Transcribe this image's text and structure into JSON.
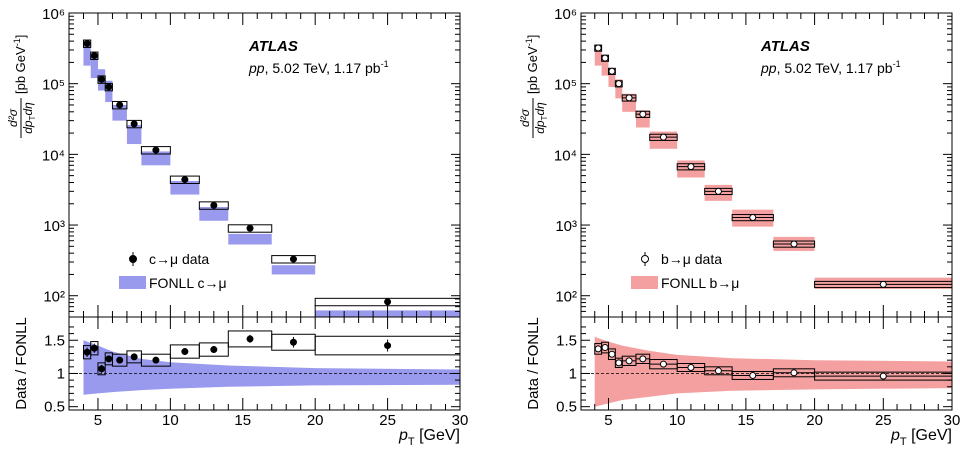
{
  "chart_data": [
    {
      "type": "scatter",
      "atlas_label": "ATLAS",
      "run_label": {
        "italic": "pp",
        "rest": ", 5.02 TeV, 1.17 pb",
        "sup": "-1"
      },
      "ylabel_main": {
        "frac_num": "d²σ",
        "frac_den": "dp",
        "den_sub": "T",
        "den_tail": "dη",
        "unit": "[pb GeV",
        "unit_sup": "-1",
        "unit_close": "]"
      },
      "ylabel_ratio": "Data / FONLL",
      "xlabel": {
        "p": "p",
        "sub": "T",
        "unit": "[GeV]"
      },
      "xlim": [
        3,
        30
      ],
      "ylim_main": [
        50,
        1000000
      ],
      "ylim_ratio": [
        0.45,
        1.85
      ],
      "y_log": true,
      "yticks_main": [
        "10²",
        "10³",
        "10⁴",
        "10⁵",
        "10⁶"
      ],
      "yticks_ratio": [
        "0.5",
        "1",
        "1.5"
      ],
      "xticks": [
        "5",
        "10",
        "15",
        "20",
        "25",
        "30"
      ],
      "legend": {
        "data": "c→μ data",
        "theory": "FONLL c→μ"
      },
      "legend_placement": "lower-left",
      "theory_color": "#9999ee",
      "data_marker": "filled-circle",
      "bins": [
        {
          "xlo": 4,
          "xhi": 4.5,
          "x": 4.25,
          "y": 370000,
          "syst": 0.12,
          "stat": 0.02,
          "th_lo": 180000,
          "th_hi": 360000
        },
        {
          "xlo": 4.5,
          "xhi": 5,
          "x": 4.75,
          "y": 250000,
          "syst": 0.12,
          "stat": 0.02,
          "th_lo": 120000,
          "th_hi": 240000
        },
        {
          "xlo": 5,
          "xhi": 5.5,
          "x": 5.25,
          "y": 115000,
          "syst": 0.12,
          "stat": 0.02,
          "th_lo": 80000,
          "th_hi": 160000
        },
        {
          "xlo": 5.5,
          "xhi": 6,
          "x": 5.75,
          "y": 90000,
          "syst": 0.12,
          "stat": 0.02,
          "th_lo": 55000,
          "th_hi": 110000
        },
        {
          "xlo": 6,
          "xhi": 7,
          "x": 6.5,
          "y": 50000,
          "syst": 0.12,
          "stat": 0.02,
          "th_lo": 30000,
          "th_hi": 50000
        },
        {
          "xlo": 7,
          "xhi": 8,
          "x": 7.5,
          "y": 27000,
          "syst": 0.12,
          "stat": 0.02,
          "th_lo": 14000,
          "th_hi": 26000
        },
        {
          "xlo": 8,
          "xhi": 10,
          "x": 9,
          "y": 11500,
          "syst": 0.12,
          "stat": 0.02,
          "th_lo": 7000,
          "th_hi": 11000
        },
        {
          "xlo": 10,
          "xhi": 12,
          "x": 11,
          "y": 4400,
          "syst": 0.12,
          "stat": 0.02,
          "th_lo": 2700,
          "th_hi": 4200
        },
        {
          "xlo": 12,
          "xhi": 14,
          "x": 13,
          "y": 1900,
          "syst": 0.12,
          "stat": 0.02,
          "th_lo": 1150,
          "th_hi": 1800
        },
        {
          "xlo": 14,
          "xhi": 17,
          "x": 15.5,
          "y": 900,
          "syst": 0.12,
          "stat": 0.02,
          "th_lo": 530,
          "th_hi": 750
        },
        {
          "xlo": 17,
          "xhi": 20,
          "x": 18.5,
          "y": 330,
          "syst": 0.12,
          "stat": 0.02,
          "th_lo": 200,
          "th_hi": 270
        },
        {
          "xlo": 20,
          "xhi": 30,
          "x": 25,
          "y": 82,
          "syst": 0.12,
          "stat": 0.04,
          "th_lo": 50,
          "th_hi": 62
        }
      ],
      "ratio": [
        {
          "xlo": 4,
          "xhi": 4.5,
          "x": 4.25,
          "y": 1.32,
          "syst": 0.1,
          "stat": 0.07
        },
        {
          "xlo": 4.5,
          "xhi": 5,
          "x": 4.75,
          "y": 1.38,
          "syst": 0.1,
          "stat": 0.07
        },
        {
          "xlo": 5,
          "xhi": 5.5,
          "x": 5.25,
          "y": 1.07,
          "syst": 0.09,
          "stat": 0.06
        },
        {
          "xlo": 5.5,
          "xhi": 6,
          "x": 5.75,
          "y": 1.22,
          "syst": 0.09,
          "stat": 0.05
        },
        {
          "xlo": 6,
          "xhi": 7,
          "x": 6.5,
          "y": 1.2,
          "syst": 0.09,
          "stat": 0.04
        },
        {
          "xlo": 7,
          "xhi": 8,
          "x": 7.5,
          "y": 1.25,
          "syst": 0.09,
          "stat": 0.04
        },
        {
          "xlo": 8,
          "xhi": 10,
          "x": 9,
          "y": 1.2,
          "syst": 0.09,
          "stat": 0.03
        },
        {
          "xlo": 10,
          "xhi": 12,
          "x": 11,
          "y": 1.33,
          "syst": 0.1,
          "stat": 0.05
        },
        {
          "xlo": 12,
          "xhi": 14,
          "x": 13,
          "y": 1.36,
          "syst": 0.1,
          "stat": 0.05
        },
        {
          "xlo": 14,
          "xhi": 17,
          "x": 15.5,
          "y": 1.52,
          "syst": 0.12,
          "stat": 0.06
        },
        {
          "xlo": 17,
          "xhi": 20,
          "x": 18.5,
          "y": 1.47,
          "syst": 0.12,
          "stat": 0.08
        },
        {
          "xlo": 20,
          "xhi": 30,
          "x": 25,
          "y": 1.42,
          "syst": 0.14,
          "stat": 0.09
        }
      ],
      "ratio_band": [
        {
          "x": 4,
          "lo": 0.68,
          "hi": 1.5
        },
        {
          "x": 5,
          "lo": 0.7,
          "hi": 1.42
        },
        {
          "x": 6,
          "lo": 0.72,
          "hi": 1.33
        },
        {
          "x": 8,
          "lo": 0.75,
          "hi": 1.22
        },
        {
          "x": 10,
          "lo": 0.77,
          "hi": 1.17
        },
        {
          "x": 14,
          "lo": 0.8,
          "hi": 1.12
        },
        {
          "x": 20,
          "lo": 0.82,
          "hi": 1.08
        },
        {
          "x": 30,
          "lo": 0.83,
          "hi": 1.06
        }
      ]
    },
    {
      "type": "scatter",
      "atlas_label": "ATLAS",
      "run_label": {
        "italic": "pp",
        "rest": ", 5.02 TeV, 1.17 pb",
        "sup": "-1"
      },
      "ylabel_main": {
        "frac_num": "d²σ",
        "frac_den": "dp",
        "den_sub": "T",
        "den_tail": "dη",
        "unit": "[pb GeV",
        "unit_sup": "-1",
        "unit_close": "]"
      },
      "ylabel_ratio": "Data / FONLL",
      "xlabel": {
        "p": "p",
        "sub": "T",
        "unit": "[GeV]"
      },
      "xlim": [
        3,
        30
      ],
      "ylim_main": [
        50,
        1000000
      ],
      "ylim_ratio": [
        0.45,
        1.85
      ],
      "y_log": true,
      "yticks_main": [
        "10²",
        "10³",
        "10⁴",
        "10⁵",
        "10⁶"
      ],
      "yticks_ratio": [
        "0.5",
        "1",
        "1.5"
      ],
      "xticks": [
        "5",
        "10",
        "15",
        "20",
        "25",
        "30"
      ],
      "legend": {
        "data": "b→μ data",
        "theory": "FONLL b→μ"
      },
      "legend_placement": "lower-left",
      "theory_color": "#f4a0a0",
      "data_marker": "open-circle",
      "bins": [
        {
          "xlo": 4,
          "xhi": 4.5,
          "x": 4.25,
          "y": 320000,
          "syst": 0.1,
          "stat": 0.02,
          "th_lo": 180000,
          "th_hi": 350000
        },
        {
          "xlo": 4.5,
          "xhi": 5,
          "x": 4.75,
          "y": 230000,
          "syst": 0.1,
          "stat": 0.02,
          "th_lo": 130000,
          "th_hi": 240000
        },
        {
          "xlo": 5,
          "xhi": 5.5,
          "x": 5.25,
          "y": 150000,
          "syst": 0.1,
          "stat": 0.02,
          "th_lo": 90000,
          "th_hi": 165000
        },
        {
          "xlo": 5.5,
          "xhi": 6,
          "x": 5.75,
          "y": 100000,
          "syst": 0.1,
          "stat": 0.02,
          "th_lo": 62000,
          "th_hi": 115000
        },
        {
          "xlo": 6,
          "xhi": 7,
          "x": 6.5,
          "y": 63000,
          "syst": 0.1,
          "stat": 0.02,
          "th_lo": 40000,
          "th_hi": 72000
        },
        {
          "xlo": 7,
          "xhi": 8,
          "x": 7.5,
          "y": 37000,
          "syst": 0.1,
          "stat": 0.02,
          "th_lo": 24000,
          "th_hi": 42000
        },
        {
          "xlo": 8,
          "xhi": 10,
          "x": 9,
          "y": 17500,
          "syst": 0.1,
          "stat": 0.02,
          "th_lo": 12000,
          "th_hi": 21000
        },
        {
          "xlo": 10,
          "xhi": 12,
          "x": 11,
          "y": 6700,
          "syst": 0.1,
          "stat": 0.02,
          "th_lo": 4700,
          "th_hi": 8200
        },
        {
          "xlo": 12,
          "xhi": 14,
          "x": 13,
          "y": 3000,
          "syst": 0.1,
          "stat": 0.02,
          "th_lo": 2200,
          "th_hi": 3700
        },
        {
          "xlo": 14,
          "xhi": 17,
          "x": 15.5,
          "y": 1280,
          "syst": 0.1,
          "stat": 0.02,
          "th_lo": 950,
          "th_hi": 1650
        },
        {
          "xlo": 17,
          "xhi": 20,
          "x": 18.5,
          "y": 540,
          "syst": 0.1,
          "stat": 0.02,
          "th_lo": 430,
          "th_hi": 680
        },
        {
          "xlo": 20,
          "xhi": 30,
          "x": 25,
          "y": 145,
          "syst": 0.1,
          "stat": 0.03,
          "th_lo": 125,
          "th_hi": 180
        }
      ],
      "ratio": [
        {
          "xlo": 4,
          "xhi": 4.5,
          "x": 4.25,
          "y": 1.37,
          "syst": 0.08,
          "stat": 0.04
        },
        {
          "xlo": 4.5,
          "xhi": 5,
          "x": 4.75,
          "y": 1.39,
          "syst": 0.08,
          "stat": 0.04
        },
        {
          "xlo": 5,
          "xhi": 5.5,
          "x": 5.25,
          "y": 1.29,
          "syst": 0.08,
          "stat": 0.04
        },
        {
          "xlo": 5.5,
          "xhi": 6,
          "x": 5.75,
          "y": 1.16,
          "syst": 0.07,
          "stat": 0.04
        },
        {
          "xlo": 6,
          "xhi": 7,
          "x": 6.5,
          "y": 1.19,
          "syst": 0.07,
          "stat": 0.03
        },
        {
          "xlo": 7,
          "xhi": 8,
          "x": 7.5,
          "y": 1.22,
          "syst": 0.07,
          "stat": 0.03
        },
        {
          "xlo": 8,
          "xhi": 10,
          "x": 9,
          "y": 1.14,
          "syst": 0.07,
          "stat": 0.02
        },
        {
          "xlo": 10,
          "xhi": 12,
          "x": 11,
          "y": 1.09,
          "syst": 0.06,
          "stat": 0.02
        },
        {
          "xlo": 12,
          "xhi": 14,
          "x": 13,
          "y": 1.04,
          "syst": 0.06,
          "stat": 0.02
        },
        {
          "xlo": 14,
          "xhi": 17,
          "x": 15.5,
          "y": 0.97,
          "syst": 0.06,
          "stat": 0.02
        },
        {
          "xlo": 17,
          "xhi": 20,
          "x": 18.5,
          "y": 1.01,
          "syst": 0.06,
          "stat": 0.02
        },
        {
          "xlo": 20,
          "xhi": 30,
          "x": 25,
          "y": 0.96,
          "syst": 0.06,
          "stat": 0.02
        }
      ],
      "ratio_band": [
        {
          "x": 4,
          "lo": 0.5,
          "hi": 1.55
        },
        {
          "x": 5,
          "lo": 0.55,
          "hi": 1.48
        },
        {
          "x": 6,
          "lo": 0.6,
          "hi": 1.42
        },
        {
          "x": 8,
          "lo": 0.65,
          "hi": 1.34
        },
        {
          "x": 10,
          "lo": 0.7,
          "hi": 1.28
        },
        {
          "x": 14,
          "lo": 0.74,
          "hi": 1.23
        },
        {
          "x": 20,
          "lo": 0.76,
          "hi": 1.2
        },
        {
          "x": 30,
          "lo": 0.78,
          "hi": 1.18
        }
      ]
    }
  ]
}
